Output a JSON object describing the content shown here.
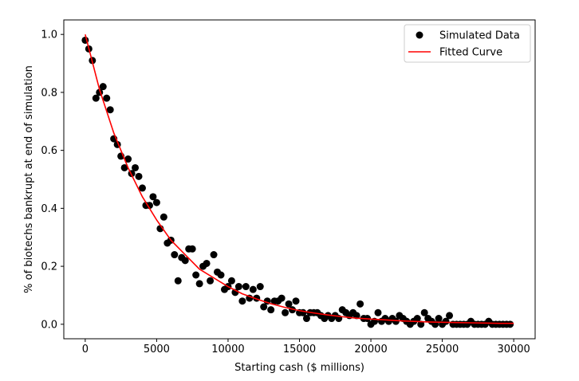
{
  "chart_data": {
    "type": "scatter",
    "title": "",
    "xlabel": "Starting cash ($ millions)",
    "ylabel": "% of biotechs bankrupt at end of simulation",
    "xlim": [
      -1500,
      31500
    ],
    "ylim": [
      -0.05,
      1.05
    ],
    "xticks": [
      0,
      5000,
      10000,
      15000,
      20000,
      25000,
      30000
    ],
    "yticks": [
      0.0,
      0.2,
      0.4,
      0.6,
      0.8,
      1.0
    ],
    "xtick_labels": [
      "0",
      "5000",
      "10000",
      "15000",
      "20000",
      "25000",
      "30000"
    ],
    "ytick_labels": [
      "0.0",
      "0.2",
      "0.4",
      "0.6",
      "0.8",
      "1.0"
    ],
    "legend_position": "top-right",
    "series": [
      {
        "name": "Simulated Data",
        "kind": "scatter",
        "color": "#000000",
        "x": [
          0,
          250,
          500,
          750,
          1000,
          1250,
          1500,
          1750,
          2000,
          2250,
          2500,
          2750,
          3000,
          3250,
          3500,
          3750,
          4000,
          4250,
          4500,
          4750,
          5000,
          5250,
          5500,
          5750,
          6000,
          6250,
          6500,
          6750,
          7000,
          7250,
          7500,
          7750,
          8000,
          8250,
          8500,
          8750,
          9000,
          9250,
          9500,
          9750,
          10000,
          10250,
          10500,
          10750,
          11000,
          11250,
          11500,
          11750,
          12000,
          12250,
          12500,
          12750,
          13000,
          13250,
          13500,
          13750,
          14000,
          14250,
          14500,
          14750,
          15000,
          15250,
          15500,
          15750,
          16000,
          16250,
          16500,
          16750,
          17000,
          17250,
          17500,
          17750,
          18000,
          18250,
          18500,
          18750,
          19000,
          19250,
          19500,
          19750,
          20000,
          20250,
          20500,
          20750,
          21000,
          21250,
          21500,
          21750,
          22000,
          22250,
          22500,
          22750,
          23000,
          23250,
          23500,
          23750,
          24000,
          24250,
          24500,
          24750,
          25000,
          25250,
          25500,
          25750,
          26000,
          26250,
          26500,
          26750,
          27000,
          27250,
          27500,
          27750,
          28000,
          28250,
          28500,
          28750,
          29000,
          29250,
          29500,
          29750
        ],
        "y": [
          0.98,
          0.95,
          0.91,
          0.78,
          0.8,
          0.82,
          0.78,
          0.74,
          0.64,
          0.62,
          0.58,
          0.54,
          0.57,
          0.52,
          0.54,
          0.51,
          0.47,
          0.41,
          0.41,
          0.44,
          0.42,
          0.33,
          0.37,
          0.28,
          0.29,
          0.24,
          0.15,
          0.23,
          0.22,
          0.26,
          0.26,
          0.17,
          0.14,
          0.2,
          0.21,
          0.15,
          0.24,
          0.18,
          0.17,
          0.12,
          0.13,
          0.15,
          0.11,
          0.13,
          0.08,
          0.13,
          0.09,
          0.12,
          0.09,
          0.13,
          0.06,
          0.08,
          0.05,
          0.08,
          0.08,
          0.09,
          0.04,
          0.07,
          0.05,
          0.08,
          0.04,
          0.04,
          0.02,
          0.04,
          0.04,
          0.04,
          0.03,
          0.02,
          0.03,
          0.02,
          0.03,
          0.02,
          0.05,
          0.04,
          0.03,
          0.04,
          0.03,
          0.07,
          0.02,
          0.02,
          0.0,
          0.01,
          0.04,
          0.01,
          0.02,
          0.01,
          0.02,
          0.01,
          0.03,
          0.02,
          0.01,
          0.0,
          0.01,
          0.02,
          0.0,
          0.04,
          0.02,
          0.01,
          0.0,
          0.02,
          0.0,
          0.01,
          0.03,
          0.0,
          0.0,
          0.0,
          0.0,
          0.0,
          0.01,
          0.0,
          0.0,
          0.0,
          0.0,
          0.01,
          0.0,
          0.0,
          0.0,
          0.0,
          0.0,
          0.0
        ]
      },
      {
        "name": "Fitted Curve",
        "kind": "line",
        "color": "#ff0000",
        "x": [
          0,
          1000,
          2000,
          3000,
          4000,
          5000,
          6000,
          7000,
          8000,
          9000,
          10000,
          11000,
          12000,
          13000,
          14000,
          15000,
          16000,
          17000,
          18000,
          19000,
          20000,
          21000,
          22000,
          23000,
          24000,
          25000,
          26000,
          27000,
          28000,
          29000,
          30000
        ],
        "y": [
          1.0,
          0.81,
          0.66,
          0.54,
          0.44,
          0.36,
          0.29,
          0.24,
          0.19,
          0.16,
          0.13,
          0.105,
          0.087,
          0.071,
          0.058,
          0.047,
          0.039,
          0.032,
          0.026,
          0.021,
          0.018,
          0.015,
          0.012,
          0.01,
          0.008,
          0.007,
          0.006,
          0.005,
          0.004,
          0.003,
          0.003
        ]
      }
    ]
  }
}
